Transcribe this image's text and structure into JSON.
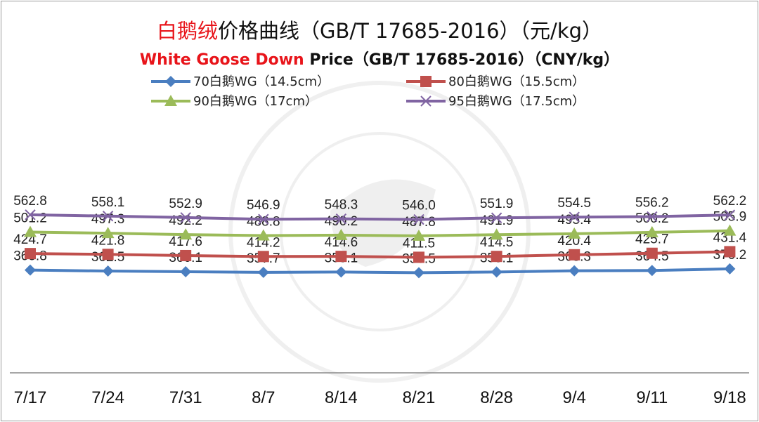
{
  "title_cn": {
    "highlight": "白鹅绒",
    "rest": "价格曲线（GB/T 17685-2016）（元/kg）"
  },
  "title_en": {
    "highlight": "White Goose Down",
    "rest": " Price（GB/T 17685-2016）（CNY/kg）"
  },
  "colors": {
    "highlight": "#e8141a",
    "text": "#111111"
  },
  "chart_data": {
    "type": "line",
    "categories": [
      "7/17",
      "7/24",
      "7/31",
      "8/7",
      "8/14",
      "8/21",
      "8/28",
      "9/4",
      "9/11",
      "9/18"
    ],
    "ylim": [
      0,
      650
    ],
    "grid": false,
    "legend_position": "top",
    "series": [
      {
        "name": "70白鹅WG（14.5cm）",
        "color": "#4a7ec0",
        "marker": "diamond",
        "values": [
          365.8,
          362.5,
          360.1,
          357.7,
          359.1,
          356.5,
          359.1,
          363.3,
          364.5,
          370.2
        ],
        "labels": [
          "365.8",
          "362.5",
          "360.1",
          "357.7",
          "359.1",
          "356.5",
          "359.1",
          "363.3",
          "364.5",
          "370.2"
        ]
      },
      {
        "name": "80白鹅WG（15.5cm）",
        "color": "#c0504d",
        "marker": "square",
        "values": [
          424.7,
          421.8,
          417.6,
          414.2,
          414.6,
          411.5,
          414.5,
          420.4,
          425.7,
          431.4
        ],
        "labels": [
          "424.7",
          "421.8",
          "417.6",
          "414.2",
          "414.6",
          "411.5",
          "414.5",
          "420.4",
          "425.7",
          "431.4"
        ]
      },
      {
        "name": "90白鹅WG（17cm）",
        "color": "#9bbb59",
        "marker": "triangle",
        "values": [
          501.2,
          497.3,
          492.2,
          488.8,
          490.2,
          487.8,
          491.9,
          495.4,
          500.2,
          505.9
        ],
        "labels": [
          "501.2",
          "497.3",
          "492.2",
          "488.8",
          "490.2",
          "487.8",
          "491.9",
          "495.4",
          "500.2",
          "505.9"
        ]
      },
      {
        "name": "95白鹅WG（17.5cm）",
        "color": "#8064a2",
        "marker": "x",
        "values": [
          562.8,
          558.1,
          552.9,
          546.9,
          548.3,
          546.0,
          551.9,
          554.5,
          556.2,
          562.2
        ],
        "labels": [
          "562.8",
          "558.1",
          "552.9",
          "546.9",
          "548.3",
          "546.0",
          "551.9",
          "554.5",
          "556.2",
          "562.2"
        ]
      }
    ]
  }
}
